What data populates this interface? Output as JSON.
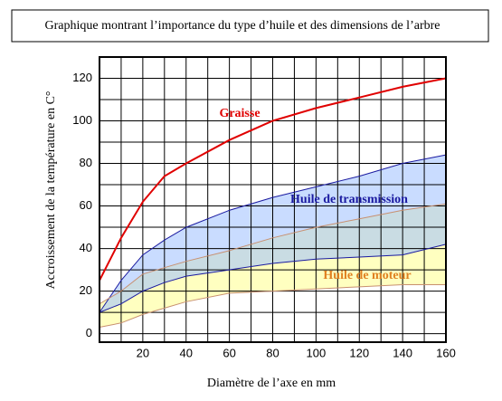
{
  "chart_data": {
    "type": "line",
    "title": "Graphique montrant l’importance du type d’huile et des dimensions de l’arbre",
    "xlabel": "Diamètre de l’axe en mm",
    "ylabel": "Accroissement de la température en C°",
    "x": [
      0,
      10,
      20,
      30,
      40,
      60,
      80,
      100,
      120,
      140,
      160
    ],
    "xlim": [
      0,
      160
    ],
    "ylim": [
      -4,
      130
    ],
    "xticks": [
      20,
      40,
      60,
      80,
      100,
      120,
      140,
      160
    ],
    "yticks": [
      0,
      20,
      40,
      60,
      80,
      100,
      120
    ],
    "xminor": [
      10,
      30,
      50,
      70,
      90,
      110,
      130,
      150
    ],
    "yminor": [
      10,
      30,
      50,
      70,
      90,
      110,
      130
    ],
    "grid": true,
    "series": [
      {
        "name": "Graisse",
        "color": "#e00000",
        "values": [
          25,
          45,
          62,
          74,
          80,
          91,
          100,
          106,
          111,
          116,
          120
        ]
      },
      {
        "name": "Huile de transmission",
        "color": "#1a1aa0",
        "fill": "#9cc0ff",
        "upper": [
          10,
          25,
          37,
          44,
          50,
          58,
          64,
          69,
          74,
          80,
          84
        ],
        "lower": [
          10,
          14,
          20,
          24,
          27,
          30,
          33,
          35,
          36,
          37,
          42
        ]
      },
      {
        "name": "Huile de moteur",
        "color": "#e08020",
        "line_color": "#c89070",
        "fill": "#ffffc0",
        "upper": [
          14,
          20,
          28,
          31,
          34,
          39,
          45,
          50,
          54,
          58,
          61
        ],
        "lower": [
          3,
          5,
          9,
          12,
          15,
          19,
          20,
          21,
          22,
          23,
          23
        ]
      }
    ]
  }
}
